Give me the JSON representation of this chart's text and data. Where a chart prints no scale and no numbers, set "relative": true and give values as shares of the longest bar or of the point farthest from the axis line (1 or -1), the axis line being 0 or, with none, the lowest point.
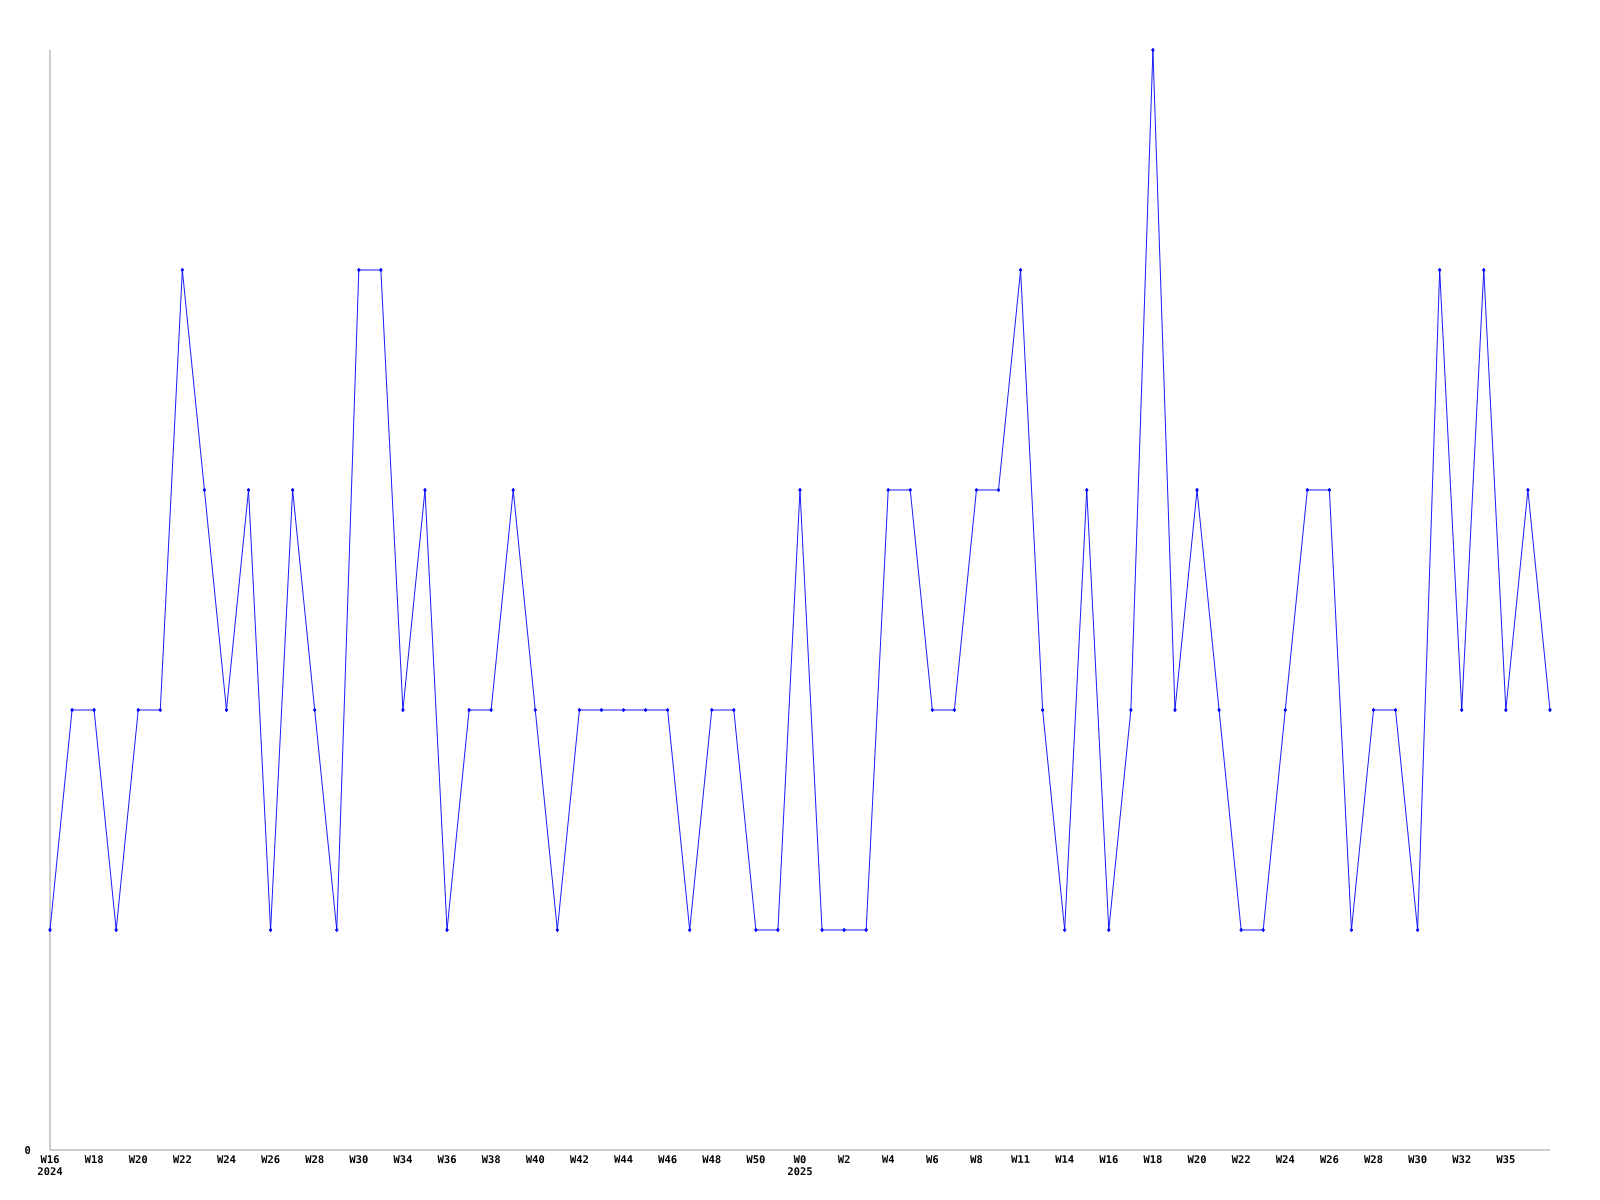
{
  "chart_data": {
    "type": "line",
    "relative": true,
    "marker": "diamond",
    "color": "#0000ff",
    "categories": [
      "W16 2024",
      null,
      "W18",
      null,
      "W20",
      null,
      "W22",
      null,
      "W24",
      null,
      "W26",
      null,
      "W28",
      null,
      "W30",
      null,
      "W34",
      null,
      "W36",
      null,
      "W38",
      null,
      "W40",
      null,
      "W42",
      null,
      "W44",
      null,
      "W46",
      null,
      "W48",
      null,
      "W50",
      null,
      "W0 2025",
      null,
      "W2",
      null,
      "W4",
      null,
      "W6",
      null,
      "W8",
      null,
      "W11",
      null,
      "W14",
      null,
      "W16",
      null,
      "W18",
      null,
      "W20",
      null,
      "W22",
      null,
      "W24",
      null,
      "W26",
      null,
      "W28",
      null,
      "W30",
      null,
      "W32",
      null,
      "W35",
      null,
      null
    ],
    "values": [
      0.2,
      0.4,
      0.4,
      0.2,
      0.4,
      0.4,
      0.8,
      0.6,
      0.4,
      0.6,
      0.2,
      0.6,
      0.4,
      0.2,
      0.8,
      0.8,
      0.4,
      0.6,
      0.2,
      0.4,
      0.4,
      0.6,
      0.4,
      0.2,
      0.4,
      0.4,
      0.4,
      0.4,
      0.4,
      0.2,
      0.4,
      0.4,
      0.2,
      0.2,
      0.6,
      0.2,
      0.2,
      0.2,
      0.6,
      0.6,
      0.4,
      0.4,
      0.6,
      0.6,
      0.8,
      0.4,
      0.2,
      0.6,
      0.2,
      0.4,
      1.0,
      0.4,
      0.6,
      0.4,
      0.2,
      0.2,
      0.4,
      0.6,
      0.6,
      0.2,
      0.4,
      0.4,
      0.2,
      0.8,
      0.4,
      0.8,
      0.4,
      0.6,
      0.4
    ],
    "annotations": [
      "0"
    ]
  }
}
